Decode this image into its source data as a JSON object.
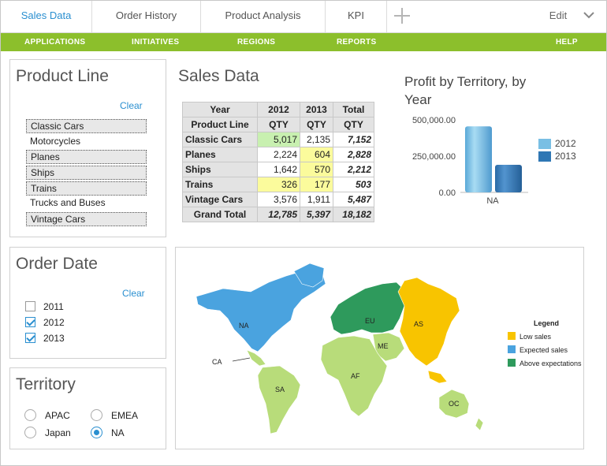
{
  "tabs": [
    {
      "label": "Sales Data",
      "active": true
    },
    {
      "label": "Order History",
      "active": false
    },
    {
      "label": "Product Analysis",
      "active": false
    },
    {
      "label": "KPI",
      "active": false
    }
  ],
  "edit_label": "Edit",
  "menu": [
    "APPLICATIONS",
    "INITIATIVES",
    "REGIONS",
    "REPORTS",
    "HELP"
  ],
  "product_line": {
    "title": "Product Line",
    "clear": "Clear",
    "items": [
      {
        "label": "Classic Cars",
        "selected": true
      },
      {
        "label": "Motorcycles",
        "selected": false
      },
      {
        "label": "Planes",
        "selected": true
      },
      {
        "label": "Ships",
        "selected": true
      },
      {
        "label": "Trains",
        "selected": true
      },
      {
        "label": "Trucks and Buses",
        "selected": false
      },
      {
        "label": "Vintage Cars",
        "selected": true
      }
    ]
  },
  "order_date": {
    "title": "Order Date",
    "clear": "Clear",
    "years": [
      {
        "label": "2011",
        "checked": false
      },
      {
        "label": "2012",
        "checked": true
      },
      {
        "label": "2013",
        "checked": true
      }
    ]
  },
  "territory": {
    "title": "Territory",
    "options": [
      {
        "label": "APAC",
        "selected": false
      },
      {
        "label": "EMEA",
        "selected": false
      },
      {
        "label": "Japan",
        "selected": false
      },
      {
        "label": "NA",
        "selected": true
      }
    ]
  },
  "sales": {
    "title": "Sales Data",
    "col_header_year": "Year",
    "col_header_line": "Product Line",
    "years": [
      "2012",
      "2013",
      "Total"
    ],
    "measure": "QTY",
    "rows": [
      {
        "label": "Classic Cars",
        "v2012": "5,017",
        "v2013": "2,135",
        "total": "7,152",
        "h2012": "g",
        "h2013": ""
      },
      {
        "label": "Planes",
        "v2012": "2,224",
        "v2013": "604",
        "total": "2,828",
        "h2012": "",
        "h2013": "y"
      },
      {
        "label": "Ships",
        "v2012": "1,642",
        "v2013": "570",
        "total": "2,212",
        "h2012": "",
        "h2013": "y"
      },
      {
        "label": "Trains",
        "v2012": "326",
        "v2013": "177",
        "total": "503",
        "h2012": "y",
        "h2013": "y"
      },
      {
        "label": "Vintage Cars",
        "v2012": "3,576",
        "v2013": "1,911",
        "total": "5,487",
        "h2012": "",
        "h2013": ""
      }
    ],
    "grand_total": {
      "label": "Grand Total",
      "v2012": "12,785",
      "v2013": "5,397",
      "total": "18,182"
    }
  },
  "profit_chart": {
    "title": "Profit by Territory, by Year",
    "colors": {
      "2012": "#79bfe4",
      "2013": "#2f77b4"
    },
    "chart_data": {
      "type": "bar",
      "title": "Profit by Territory, by Year",
      "categories": [
        "NA"
      ],
      "series": [
        {
          "name": "2012",
          "values": [
            455000
          ]
        },
        {
          "name": "2013",
          "values": [
            190000
          ]
        }
      ],
      "ylim": [
        0,
        500000
      ],
      "yticks": [
        "500,000.00",
        "250,000.00",
        "0.00"
      ],
      "legend": "right"
    }
  },
  "map": {
    "regions": [
      "NA",
      "CA",
      "SA",
      "EU",
      "ME",
      "AF",
      "AS",
      "OC"
    ],
    "legend_title": "Legend",
    "legend": [
      {
        "label": "Low sales",
        "color": "#f8c400"
      },
      {
        "label": "Expected sales",
        "color": "#4aa3df"
      },
      {
        "label": "Above expectations",
        "color": "#2e9a5c"
      }
    ]
  }
}
